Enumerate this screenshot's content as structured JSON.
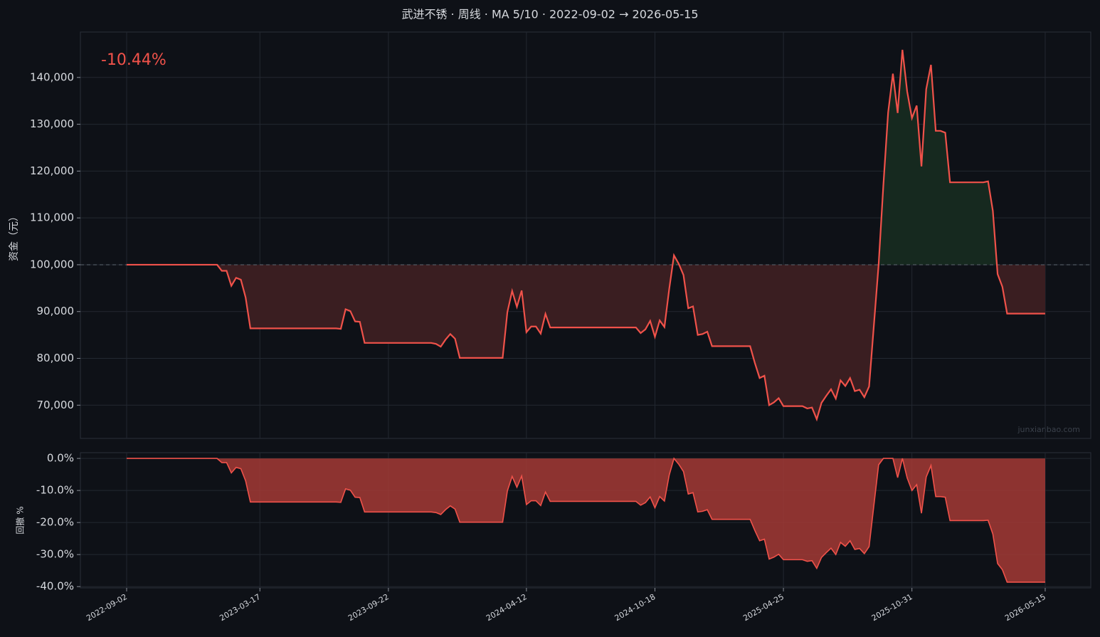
{
  "chart_data": [
    {
      "type": "line",
      "title": "武进不锈 · 周线 · MA 5/10 · 2022-09-02 → 2026-05-15",
      "annotation": "-10.44%",
      "watermark": "junxianbao.com",
      "ylabel": "资金（元）",
      "x": [
        "2022-09-02",
        "2023-01-13",
        "2023-01-20",
        "2023-01-27",
        "2023-02-03",
        "2023-02-10",
        "2023-02-17",
        "2023-02-24",
        "2023-03-03",
        "2023-07-07",
        "2023-07-14",
        "2023-07-21",
        "2023-07-28",
        "2023-08-04",
        "2023-08-11",
        "2023-08-18",
        "2023-11-24",
        "2023-12-01",
        "2023-12-08",
        "2023-12-15",
        "2023-12-22",
        "2023-12-29",
        "2024-01-05",
        "2024-03-08",
        "2024-03-15",
        "2024-03-22",
        "2024-03-29",
        "2024-04-05",
        "2024-04-12",
        "2024-04-19",
        "2024-04-26",
        "2024-05-03",
        "2024-05-10",
        "2024-05-17",
        "2024-09-20",
        "2024-09-27",
        "2024-10-04",
        "2024-10-11",
        "2024-10-18",
        "2024-10-25",
        "2024-11-01",
        "2024-11-08",
        "2024-11-15",
        "2024-11-22",
        "2024-11-29",
        "2024-12-06",
        "2024-12-13",
        "2024-12-20",
        "2024-12-27",
        "2025-01-03",
        "2025-01-10",
        "2025-03-07",
        "2025-03-14",
        "2025-03-21",
        "2025-03-28",
        "2025-04-04",
        "2025-04-11",
        "2025-04-18",
        "2025-04-25",
        "2025-05-23",
        "2025-05-30",
        "2025-06-06",
        "2025-06-13",
        "2025-06-20",
        "2025-06-27",
        "2025-07-04",
        "2025-07-11",
        "2025-07-18",
        "2025-07-25",
        "2025-08-01",
        "2025-08-08",
        "2025-08-15",
        "2025-08-22",
        "2025-08-29",
        "2025-09-05",
        "2025-09-12",
        "2025-09-19",
        "2025-09-26",
        "2025-10-03",
        "2025-10-10",
        "2025-10-17",
        "2025-10-24",
        "2025-10-31",
        "2025-11-07",
        "2025-11-14",
        "2025-11-21",
        "2025-11-28",
        "2025-12-05",
        "2025-12-12",
        "2025-12-19",
        "2025-12-26",
        "2026-02-13",
        "2026-02-20",
        "2026-02-27",
        "2026-03-06",
        "2026-03-13",
        "2026-03-20",
        "2026-05-15"
      ],
      "values": [
        100000,
        100000,
        98700,
        98700,
        95500,
        97200,
        96800,
        93000,
        86400,
        86400,
        86300,
        90500,
        90100,
        87900,
        87800,
        83300,
        83300,
        83100,
        82500,
        84000,
        85200,
        84200,
        80100,
        80100,
        89900,
        94400,
        91000,
        94500,
        85600,
        86800,
        86800,
        85300,
        89500,
        86600,
        86600,
        85400,
        86200,
        88000,
        84600,
        88100,
        86700,
        94800,
        102000,
        100200,
        97800,
        90700,
        91100,
        85000,
        85200,
        85700,
        82600,
        82600,
        79000,
        75800,
        76300,
        70000,
        70600,
        71500,
        69800,
        69800,
        69300,
        69500,
        67000,
        70500,
        72000,
        73400,
        71400,
        75300,
        74100,
        75800,
        73000,
        73300,
        71700,
        74000,
        87000,
        100000,
        117000,
        132500,
        140800,
        132400,
        145900,
        137000,
        131300,
        134000,
        121000,
        137500,
        142700,
        128600,
        128600,
        128200,
        117600,
        117600,
        117800,
        111500,
        98000,
        95300,
        89560,
        89560
      ],
      "color": "#f0524a",
      "fill_above": "#16291f",
      "fill_below": "#3a1e21",
      "baseline": 100000,
      "ylim": [
        62900,
        149700
      ],
      "yticks": [
        {
          "value": 70000,
          "label": "70,000"
        },
        {
          "value": 80000,
          "label": "80,000"
        },
        {
          "value": 90000,
          "label": "90,000"
        },
        {
          "value": 100000,
          "label": "100,000"
        },
        {
          "value": 110000,
          "label": "110,000"
        },
        {
          "value": 120000,
          "label": "120,000"
        },
        {
          "value": 130000,
          "label": "130,000"
        },
        {
          "value": 140000,
          "label": "140,000"
        }
      ],
      "grid": true
    },
    {
      "type": "area",
      "ylabel": "回撤 %",
      "values": [
        0,
        0,
        -1.3,
        -1.3,
        -4.5,
        -2.8,
        -3.2,
        -7.0,
        -13.6,
        -13.6,
        -13.7,
        -9.5,
        -9.9,
        -12.1,
        -12.2,
        -16.7,
        -16.7,
        -16.9,
        -17.5,
        -16.0,
        -14.8,
        -15.8,
        -19.9,
        -19.9,
        -10.1,
        -5.6,
        -9.0,
        -5.5,
        -14.4,
        -13.2,
        -13.2,
        -14.7,
        -10.5,
        -13.4,
        -13.4,
        -14.6,
        -13.8,
        -12.0,
        -15.4,
        -11.9,
        -13.3,
        -5.2,
        0,
        -1.8,
        -4.1,
        -11.1,
        -10.7,
        -16.7,
        -16.5,
        -16.0,
        -19.0,
        -19.0,
        -22.5,
        -25.7,
        -25.2,
        -31.4,
        -30.8,
        -29.9,
        -31.6,
        -31.6,
        -32.1,
        -31.9,
        -34.3,
        -30.9,
        -29.4,
        -28.0,
        -30.0,
        -26.2,
        -27.4,
        -25.7,
        -28.4,
        -28.1,
        -29.7,
        -27.5,
        -14.7,
        -2.0,
        0,
        0,
        0,
        -6.0,
        0,
        -6.1,
        -10.0,
        -8.2,
        -17.1,
        -5.8,
        -2.2,
        -11.9,
        -11.9,
        -12.1,
        -19.4,
        -19.4,
        -19.3,
        -23.6,
        -32.8,
        -34.7,
        -38.6,
        -38.6
      ],
      "color": "#f0524a",
      "fill": "#a33935",
      "xlim": [
        "2022-06-26",
        "2026-07-21"
      ],
      "xticks": [
        "2022-09-02",
        "2023-03-17",
        "2023-09-22",
        "2024-04-12",
        "2024-10-18",
        "2025-04-25",
        "2025-10-31",
        "2026-05-15"
      ],
      "ylim": [
        -40.4,
        1.8
      ],
      "yticks": [
        {
          "value": 0,
          "label": "0.0%"
        },
        {
          "value": -10,
          "label": "-10.0%"
        },
        {
          "value": -20,
          "label": "-20.0%"
        },
        {
          "value": -30,
          "label": "-30.0%"
        },
        {
          "value": -40,
          "label": "-40.0%"
        }
      ],
      "grid": true
    }
  ]
}
